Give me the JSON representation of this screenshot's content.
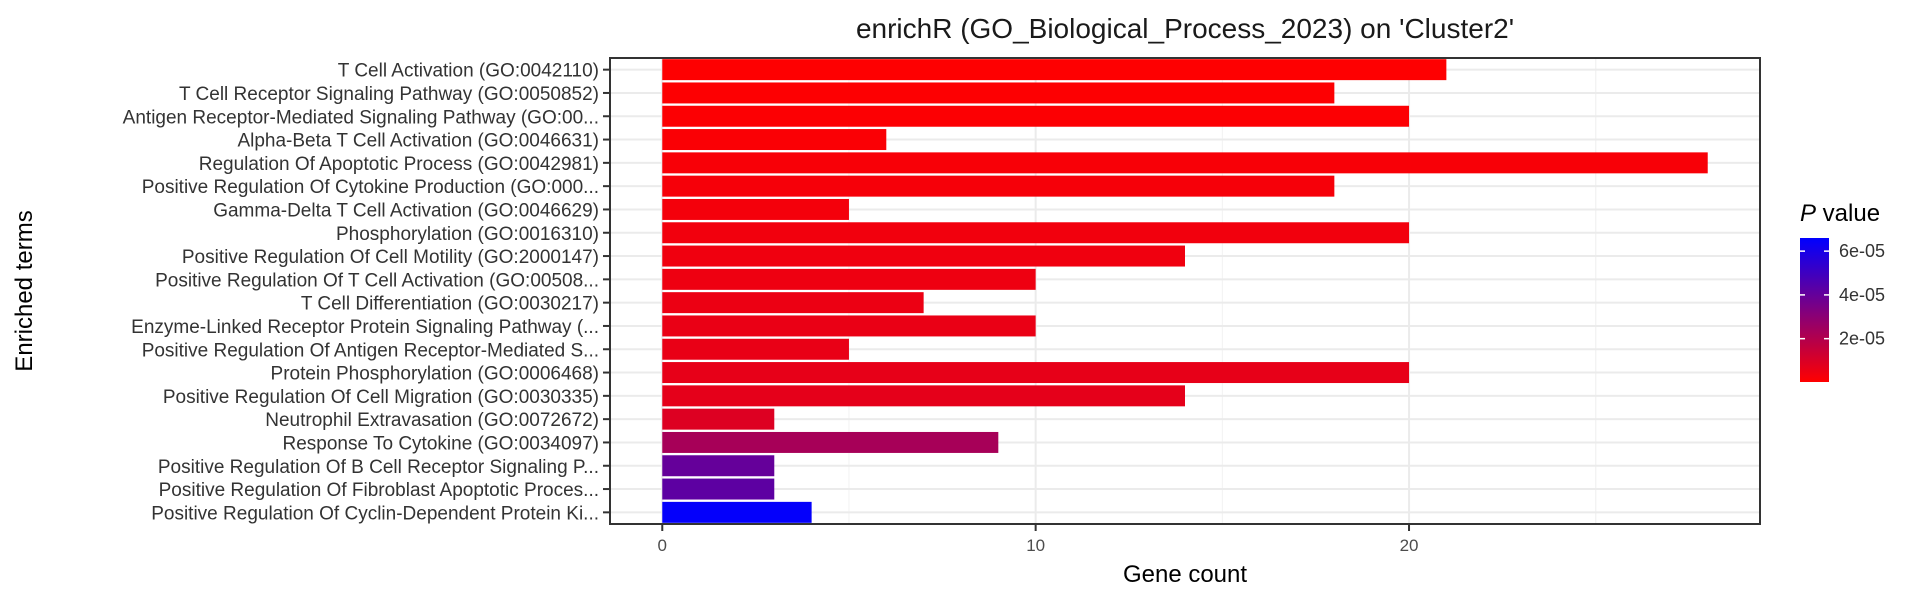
{
  "chart_data": {
    "type": "bar",
    "orientation": "horizontal",
    "title": "enrichR (GO_Biological_Process_2023) on 'Cluster2'",
    "xlabel": "Gene count",
    "ylabel": "Enriched terms",
    "xlim": [
      -1.4,
      29.4
    ],
    "xticks": [
      0,
      10,
      20
    ],
    "grid": true,
    "legend": {
      "title_italic": "P",
      "title_rest": " value",
      "placement": "right",
      "colors": {
        "low": "#ff0000",
        "high": "#0000ff"
      },
      "range": [
        2e-07,
        6.6e-05
      ],
      "ticks": [
        {
          "value": 2e-05,
          "label": "2e-05"
        },
        {
          "value": 4e-05,
          "label": "4e-05"
        },
        {
          "value": 6e-05,
          "label": "6e-05"
        }
      ]
    },
    "categories": [
      "T Cell Activation (GO:0042110)",
      "T Cell Receptor Signaling Pathway (GO:0050852)",
      "Antigen Receptor-Mediated Signaling Pathway (GO:00...",
      "Alpha-Beta T Cell Activation (GO:0046631)",
      "Regulation Of Apoptotic Process (GO:0042981)",
      "Positive Regulation Of Cytokine Production (GO:000...",
      "Gamma-Delta T Cell Activation (GO:0046629)",
      "Phosphorylation (GO:0016310)",
      "Positive Regulation Of Cell Motility (GO:2000147)",
      "Positive Regulation Of T Cell Activation (GO:00508...",
      "T Cell Differentiation (GO:0030217)",
      "Enzyme-Linked Receptor Protein Signaling Pathway (...",
      "Positive Regulation Of Antigen Receptor-Mediated S...",
      "Protein Phosphorylation (GO:0006468)",
      "Positive Regulation Of Cell Migration (GO:0030335)",
      "Neutrophil Extravasation (GO:0072672)",
      "Response To Cytokine (GO:0034097)",
      "Positive Regulation Of B Cell Receptor Signaling P...",
      "Positive Regulation Of Fibroblast Apoptotic Proces...",
      "Positive Regulation Of Cyclin-Dependent Protein Ki..."
    ],
    "values": [
      21,
      18,
      20,
      6,
      28,
      18,
      5,
      20,
      14,
      10,
      7,
      10,
      5,
      20,
      14,
      3,
      9,
      3,
      3,
      4
    ],
    "pvalues": [
      5e-07,
      8e-07,
      1e-06,
      1.5e-06,
      2e-06,
      2.5e-06,
      3e-06,
      3.5e-06,
      4e-06,
      4.5e-06,
      5e-06,
      5.5e-06,
      6e-06,
      6.5e-06,
      7e-06,
      9e-06,
      2.3e-05,
      4e-05,
      4.2e-05,
      6.5e-05
    ]
  }
}
